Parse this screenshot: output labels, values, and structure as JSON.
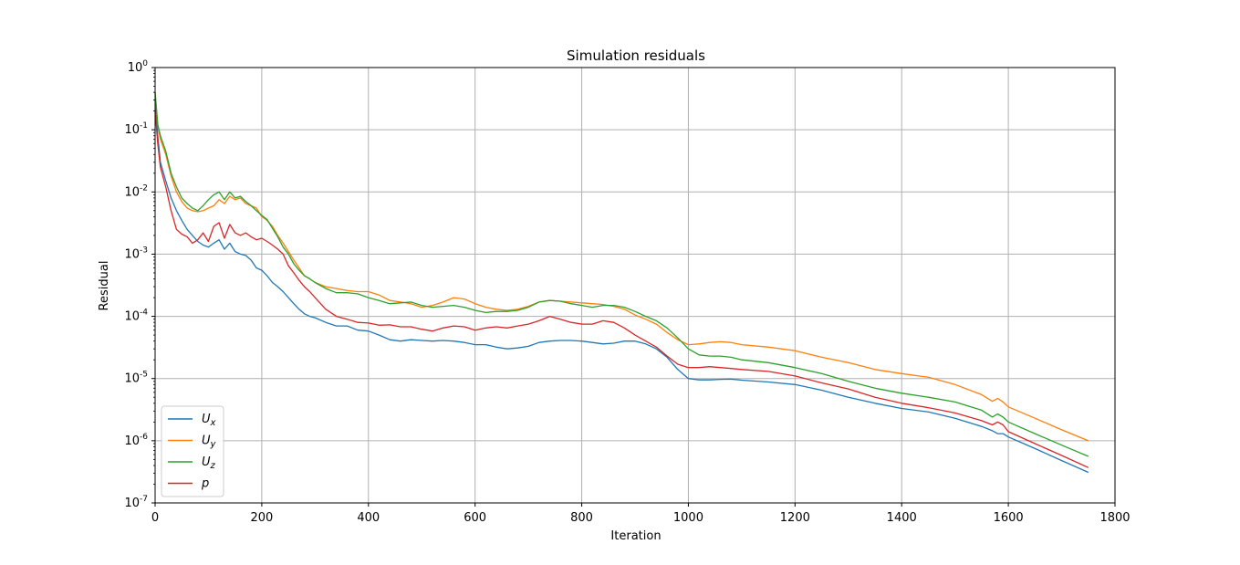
{
  "chart_data": {
    "type": "line",
    "title": "Simulation residuals",
    "xlabel": "Iteration",
    "ylabel": "Residual",
    "xlim": [
      0,
      1800
    ],
    "ylim": [
      1e-07,
      1
    ],
    "yscale": "log",
    "grid": true,
    "legend_position": "lower-left",
    "xticks": [
      0,
      200,
      400,
      600,
      800,
      1000,
      1200,
      1400,
      1600,
      1800
    ],
    "yticks": [
      {
        "base": "10",
        "exp": "-7"
      },
      {
        "base": "10",
        "exp": "-6"
      },
      {
        "base": "10",
        "exp": "-5"
      },
      {
        "base": "10",
        "exp": "-4"
      },
      {
        "base": "10",
        "exp": "-3"
      },
      {
        "base": "10",
        "exp": "-2"
      },
      {
        "base": "10",
        "exp": "-1"
      },
      {
        "base": "10",
        "exp": "0"
      }
    ],
    "series": [
      {
        "name": "U",
        "sub": "x",
        "color": "#1f77b4",
        "x": [
          0,
          5,
          10,
          20,
          30,
          40,
          50,
          60,
          70,
          80,
          90,
          100,
          110,
          120,
          130,
          140,
          150,
          160,
          170,
          180,
          190,
          200,
          210,
          220,
          230,
          240,
          250,
          260,
          270,
          280,
          290,
          300,
          320,
          340,
          360,
          380,
          400,
          420,
          440,
          460,
          480,
          500,
          520,
          540,
          560,
          580,
          600,
          620,
          640,
          660,
          680,
          700,
          720,
          740,
          760,
          780,
          800,
          820,
          840,
          860,
          880,
          900,
          920,
          940,
          960,
          980,
          1000,
          1020,
          1040,
          1060,
          1080,
          1100,
          1150,
          1200,
          1250,
          1300,
          1350,
          1400,
          1450,
          1500,
          1550,
          1570,
          1580,
          1590,
          1600,
          1650,
          1700,
          1750
        ],
        "y": [
          0.3,
          0.08,
          0.03,
          0.015,
          0.008,
          0.005,
          0.0035,
          0.0025,
          0.002,
          0.0016,
          0.0014,
          0.0013,
          0.0015,
          0.0017,
          0.0012,
          0.0015,
          0.0011,
          0.001,
          0.00095,
          0.0008,
          0.0006,
          0.00055,
          0.00045,
          0.00035,
          0.0003,
          0.00025,
          0.0002,
          0.00016,
          0.00013,
          0.00011,
          0.0001,
          9.5e-05,
          8e-05,
          7e-05,
          7e-05,
          6e-05,
          5.8e-05,
          5e-05,
          4.2e-05,
          4e-05,
          4.2e-05,
          4.1e-05,
          4e-05,
          4.1e-05,
          4e-05,
          3.8e-05,
          3.5e-05,
          3.5e-05,
          3.2e-05,
          3e-05,
          3.1e-05,
          3.3e-05,
          3.8e-05,
          4e-05,
          4.1e-05,
          4.1e-05,
          4e-05,
          3.8e-05,
          3.6e-05,
          3.7e-05,
          4e-05,
          4e-05,
          3.6e-05,
          3e-05,
          2.2e-05,
          1.4e-05,
          1e-05,
          9.5e-06,
          9.5e-06,
          9.7e-06,
          9.8e-06,
          9.4e-06,
          8.8e-06,
          8e-06,
          6.5e-06,
          5e-06,
          4e-06,
          3.3e-06,
          2.9e-06,
          2.3e-06,
          1.7e-06,
          1.45e-06,
          1.3e-06,
          1.3e-06,
          1.15e-06,
          7.5e-07,
          4.8e-07,
          3.1e-07
        ]
      },
      {
        "name": "U",
        "sub": "y",
        "color": "#ff7f0e",
        "x": [
          0,
          5,
          10,
          20,
          30,
          40,
          50,
          60,
          70,
          80,
          90,
          100,
          110,
          120,
          130,
          140,
          150,
          160,
          170,
          180,
          190,
          200,
          210,
          220,
          230,
          240,
          250,
          260,
          270,
          280,
          290,
          300,
          320,
          340,
          360,
          380,
          400,
          420,
          440,
          460,
          480,
          500,
          520,
          540,
          560,
          580,
          600,
          620,
          640,
          660,
          680,
          700,
          720,
          740,
          760,
          780,
          800,
          820,
          840,
          860,
          880,
          900,
          920,
          940,
          960,
          980,
          1000,
          1020,
          1040,
          1060,
          1080,
          1100,
          1150,
          1200,
          1250,
          1300,
          1350,
          1400,
          1450,
          1500,
          1550,
          1570,
          1580,
          1590,
          1600,
          1650,
          1700,
          1750
        ],
        "y": [
          0.4,
          0.12,
          0.07,
          0.04,
          0.018,
          0.01,
          0.007,
          0.0055,
          0.005,
          0.0048,
          0.005,
          0.0055,
          0.006,
          0.0075,
          0.0065,
          0.0085,
          0.0075,
          0.008,
          0.0065,
          0.006,
          0.0055,
          0.004,
          0.0035,
          0.0028,
          0.002,
          0.0015,
          0.0011,
          0.0008,
          0.0006,
          0.00045,
          0.0004,
          0.00035,
          0.0003,
          0.00028,
          0.00026,
          0.00025,
          0.00025,
          0.00022,
          0.00018,
          0.00017,
          0.00016,
          0.00014,
          0.00015,
          0.00017,
          0.0002,
          0.00019,
          0.00016,
          0.00014,
          0.00013,
          0.000125,
          0.00013,
          0.000145,
          0.00017,
          0.00018,
          0.000175,
          0.00017,
          0.000165,
          0.00016,
          0.000155,
          0.000145,
          0.00013,
          0.000105,
          9e-05,
          7.5e-05,
          5.5e-05,
          4.2e-05,
          3.5e-05,
          3.6e-05,
          3.8e-05,
          3.9e-05,
          3.8e-05,
          3.5e-05,
          3.2e-05,
          2.8e-05,
          2.2e-05,
          1.8e-05,
          1.4e-05,
          1.2e-05,
          1.05e-05,
          8e-06,
          5.5e-06,
          4.3e-06,
          4.8e-06,
          4.2e-06,
          3.5e-06,
          2.3e-06,
          1.5e-06,
          1e-06
        ]
      },
      {
        "name": "U",
        "sub": "z",
        "color": "#2ca02c",
        "x": [
          0,
          5,
          10,
          20,
          30,
          40,
          50,
          60,
          70,
          80,
          90,
          100,
          110,
          120,
          130,
          140,
          150,
          160,
          170,
          180,
          190,
          200,
          210,
          220,
          230,
          240,
          250,
          260,
          270,
          280,
          290,
          300,
          320,
          340,
          360,
          380,
          400,
          420,
          440,
          460,
          480,
          500,
          520,
          540,
          560,
          580,
          600,
          620,
          640,
          660,
          680,
          700,
          720,
          740,
          760,
          780,
          800,
          820,
          840,
          860,
          880,
          900,
          920,
          940,
          960,
          980,
          1000,
          1020,
          1040,
          1060,
          1080,
          1100,
          1150,
          1200,
          1250,
          1300,
          1350,
          1400,
          1450,
          1500,
          1550,
          1570,
          1580,
          1590,
          1600,
          1650,
          1700,
          1750
        ],
        "y": [
          0.4,
          0.12,
          0.08,
          0.045,
          0.02,
          0.012,
          0.008,
          0.0065,
          0.0055,
          0.005,
          0.006,
          0.0075,
          0.009,
          0.01,
          0.0075,
          0.01,
          0.008,
          0.0085,
          0.007,
          0.006,
          0.005,
          0.0042,
          0.0036,
          0.0026,
          0.0019,
          0.0013,
          0.001,
          0.0007,
          0.00055,
          0.00045,
          0.0004,
          0.00035,
          0.00028,
          0.00024,
          0.00024,
          0.00023,
          0.0002,
          0.00018,
          0.00016,
          0.000165,
          0.00017,
          0.00015,
          0.00014,
          0.000145,
          0.00015,
          0.00014,
          0.000125,
          0.000115,
          0.00012,
          0.00012,
          0.000125,
          0.00014,
          0.00017,
          0.00018,
          0.000175,
          0.00016,
          0.00015,
          0.00014,
          0.00015,
          0.00015,
          0.00014,
          0.00012,
          0.0001,
          8.5e-05,
          6.5e-05,
          4.5e-05,
          3e-05,
          2.4e-05,
          2.3e-05,
          2.3e-05,
          2.2e-05,
          2e-05,
          1.8e-05,
          1.5e-05,
          1.2e-05,
          9e-06,
          7e-06,
          5.8e-06,
          5e-06,
          4.2e-06,
          3.1e-06,
          2.4e-06,
          2.7e-06,
          2.4e-06,
          2e-06,
          1.3e-06,
          8.5e-07,
          5.6e-07
        ]
      },
      {
        "name": "p",
        "sub": "",
        "color": "#d62728",
        "x": [
          0,
          5,
          10,
          20,
          30,
          40,
          50,
          60,
          70,
          80,
          90,
          100,
          110,
          120,
          130,
          140,
          150,
          160,
          170,
          180,
          190,
          200,
          210,
          220,
          230,
          240,
          250,
          260,
          270,
          280,
          290,
          300,
          320,
          340,
          360,
          380,
          400,
          420,
          440,
          460,
          480,
          500,
          520,
          540,
          560,
          580,
          600,
          620,
          640,
          660,
          680,
          700,
          720,
          740,
          760,
          780,
          800,
          820,
          840,
          860,
          880,
          900,
          920,
          940,
          960,
          980,
          1000,
          1020,
          1040,
          1060,
          1080,
          1100,
          1150,
          1200,
          1250,
          1300,
          1350,
          1400,
          1450,
          1500,
          1550,
          1570,
          1580,
          1590,
          1600,
          1650,
          1700,
          1750
        ],
        "y": [
          0.2,
          0.06,
          0.025,
          0.012,
          0.005,
          0.0025,
          0.0021,
          0.0019,
          0.0015,
          0.0017,
          0.0022,
          0.0016,
          0.0028,
          0.0032,
          0.0018,
          0.003,
          0.0022,
          0.002,
          0.0022,
          0.0019,
          0.0017,
          0.0018,
          0.0016,
          0.0014,
          0.0012,
          0.001,
          0.00065,
          0.0005,
          0.00038,
          0.0003,
          0.00025,
          0.0002,
          0.00013,
          0.0001,
          9e-05,
          8e-05,
          7.8e-05,
          7.2e-05,
          7.3e-05,
          6.8e-05,
          6.8e-05,
          6.2e-05,
          5.8e-05,
          6.5e-05,
          7e-05,
          6.8e-05,
          6e-05,
          6.5e-05,
          6.8e-05,
          6.5e-05,
          7e-05,
          7.5e-05,
          8.5e-05,
          0.0001,
          9e-05,
          8e-05,
          7.5e-05,
          7.5e-05,
          8.5e-05,
          8e-05,
          6.5e-05,
          5e-05,
          4e-05,
          3.2e-05,
          2.3e-05,
          1.7e-05,
          1.5e-05,
          1.5e-05,
          1.55e-05,
          1.5e-05,
          1.45e-05,
          1.4e-05,
          1.3e-05,
          1.1e-05,
          8.5e-06,
          6.8e-06,
          5e-06,
          4e-06,
          3.4e-06,
          2.8e-06,
          2.1e-06,
          1.8e-06,
          2e-06,
          1.8e-06,
          1.4e-06,
          9e-07,
          5.8e-07,
          3.7e-07
        ]
      }
    ]
  }
}
